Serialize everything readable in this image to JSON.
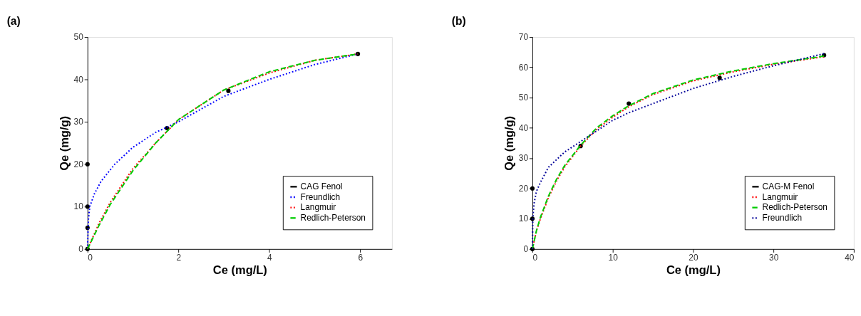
{
  "chart_data": [
    {
      "type": "line",
      "title": "(a)",
      "xlabel": "Ce (mg/L)",
      "ylabel": "Qe (mg/g)",
      "xlim": [
        0,
        6.7
      ],
      "xticks": [
        0,
        2,
        4,
        6
      ],
      "ylim": [
        0,
        50
      ],
      "yticks": [
        0,
        10,
        20,
        30,
        40,
        50
      ],
      "grid": false,
      "legend": "bottom right",
      "series": [
        {
          "name": "CAG Fenol",
          "type": "scatter",
          "marker": "circle",
          "color": "#000000",
          "x": [
            0,
            0,
            0,
            0,
            1.75,
            3.1,
            5.95
          ],
          "values": [
            0,
            5,
            10,
            20,
            28.5,
            37.3,
            46
          ]
        },
        {
          "name": "Freundlich",
          "type": "line",
          "line_style": "dotted",
          "color": "#0000ff",
          "x": [
            0,
            0.02,
            0.05,
            0.15,
            0.3,
            0.6,
            1,
            1.5,
            2,
            3,
            4,
            5,
            5.95
          ],
          "values": [
            0,
            7,
            10,
            13,
            16,
            20,
            24,
            27.5,
            30,
            36,
            40,
            43.5,
            46
          ]
        },
        {
          "name": "Langmuir",
          "type": "line",
          "line_style": "dotted",
          "color": "#ff0000",
          "x": [
            0,
            0.25,
            0.5,
            1,
            1.5,
            2,
            3,
            4,
            5,
            5.95
          ],
          "values": [
            0,
            6,
            11,
            19,
            25,
            30.5,
            37.5,
            41.5,
            44.5,
            46
          ]
        },
        {
          "name": "Redlich-Peterson",
          "type": "line",
          "line_style": "dashed",
          "color": "#00cc00",
          "x": [
            0,
            0.25,
            0.5,
            1,
            1.5,
            2,
            3,
            4,
            5,
            5.95
          ],
          "values": [
            0,
            5.5,
            10.5,
            18.5,
            25,
            30.5,
            37.5,
            41.8,
            44.5,
            46
          ]
        }
      ]
    },
    {
      "type": "line",
      "title": "(b)",
      "xlabel": "Ce (mg/L)",
      "ylabel": "Qe (mg/g)",
      "xlim": [
        0,
        40
      ],
      "xticks": [
        0,
        10,
        20,
        30,
        40
      ],
      "ylim": [
        0,
        70
      ],
      "yticks": [
        0,
        10,
        20,
        30,
        40,
        50,
        60,
        70
      ],
      "grid": false,
      "legend": "bottom right",
      "series": [
        {
          "name": "CAG-M Fenol",
          "type": "scatter",
          "marker": "circle",
          "color": "#000000",
          "x": [
            0,
            0,
            0,
            6,
            12,
            23.3,
            36.3
          ],
          "values": [
            0,
            10,
            20,
            34,
            48,
            56.5,
            64
          ]
        },
        {
          "name": "Langmuir",
          "type": "line",
          "line_style": "dotted",
          "color": "#ff0000",
          "x": [
            0,
            0.5,
            1,
            2,
            3,
            4,
            6,
            8,
            10,
            12,
            15,
            20,
            25,
            30,
            36.3
          ],
          "values": [
            0,
            6,
            10,
            17,
            22.5,
            27,
            34,
            39.5,
            43.5,
            47,
            51,
            55.5,
            58.5,
            61,
            63.5
          ]
        },
        {
          "name": "Redlich-Peterson",
          "type": "line",
          "line_style": "dashed",
          "color": "#00cc00",
          "x": [
            0,
            0.5,
            1,
            2,
            3,
            4,
            6,
            8,
            10,
            12,
            15,
            20,
            25,
            30,
            36.3
          ],
          "values": [
            0,
            6,
            10.5,
            17.5,
            23,
            27.5,
            34.3,
            40,
            44,
            47.3,
            51.3,
            55.8,
            58.8,
            61.2,
            63.7
          ]
        },
        {
          "name": "Freundlich",
          "type": "line",
          "line_style": "dotted",
          "color": "#000099",
          "x": [
            0,
            0.05,
            0.2,
            0.5,
            1,
            2,
            3,
            4,
            6,
            8,
            10,
            12,
            15,
            20,
            25,
            30,
            36.3
          ],
          "values": [
            0,
            10,
            15,
            19,
            22,
            27,
            29.5,
            32,
            35.5,
            39,
            42.5,
            45,
            48,
            53,
            57,
            60.5,
            64.5
          ]
        }
      ]
    }
  ]
}
